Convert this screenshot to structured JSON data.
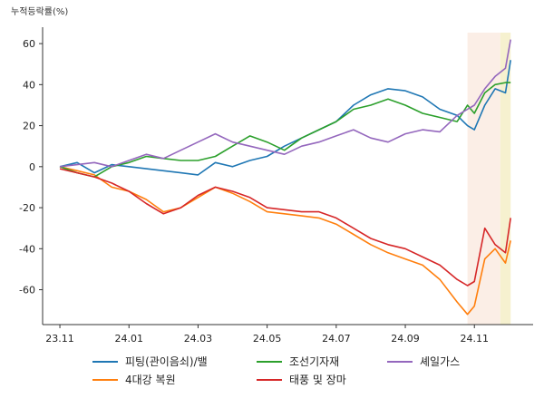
{
  "chart_data": {
    "type": "line",
    "ylabel": "누적등락률(%)",
    "ylim": [
      -77,
      68
    ],
    "y_ticks": [
      60,
      40,
      20,
      0,
      -20,
      -40,
      -60
    ],
    "x_ticks": [
      {
        "label": "23.11",
        "t": 0
      },
      {
        "label": "24.01",
        "t": 2
      },
      {
        "label": "24.03",
        "t": 4
      },
      {
        "label": "24.05",
        "t": 6
      },
      {
        "label": "24.07",
        "t": 8
      },
      {
        "label": "24.09",
        "t": 10
      },
      {
        "label": "24.11",
        "t": 12
      }
    ],
    "xlim": [
      -0.5,
      13.7
    ],
    "highlight_bands": [
      {
        "from": 11.8,
        "to": 12.75,
        "color": "#fbeee6"
      },
      {
        "from": 12.75,
        "to": 13.05,
        "color": "#f6f1cf"
      }
    ],
    "legend": {
      "position": "bottom",
      "columns": 3
    },
    "series": [
      {
        "name": "피팅(관이음쇠)/밸",
        "color": "#1f77b4",
        "x": [
          0,
          0.5,
          1,
          1.5,
          2,
          2.5,
          3,
          3.5,
          4,
          4.5,
          5,
          5.5,
          6,
          6.5,
          7,
          7.5,
          8,
          8.5,
          9,
          9.5,
          10,
          10.5,
          11,
          11.5,
          11.8,
          12,
          12.3,
          12.6,
          12.9,
          13.05
        ],
        "values": [
          0,
          2,
          -3,
          1,
          0,
          -1,
          -2,
          -3,
          -4,
          2,
          0,
          3,
          5,
          10,
          14,
          18,
          22,
          30,
          35,
          38,
          37,
          34,
          28,
          25,
          20,
          18,
          30,
          38,
          36,
          52
        ]
      },
      {
        "name": "4대강 복원",
        "color": "#ff7f0e",
        "x": [
          0,
          0.5,
          1,
          1.5,
          2,
          2.5,
          3,
          3.5,
          4,
          4.5,
          5,
          5.5,
          6,
          6.5,
          7,
          7.5,
          8,
          8.5,
          9,
          9.5,
          10,
          10.5,
          11,
          11.5,
          11.8,
          12,
          12.3,
          12.6,
          12.9,
          13.05
        ],
        "values": [
          0,
          -2,
          -4,
          -10,
          -12,
          -16,
          -22,
          -20,
          -15,
          -10,
          -13,
          -17,
          -22,
          -23,
          -24,
          -25,
          -28,
          -33,
          -38,
          -42,
          -45,
          -48,
          -55,
          -66,
          -72,
          -68,
          -45,
          -40,
          -47,
          -36
        ]
      },
      {
        "name": "조선기자재",
        "color": "#2ca02c",
        "x": [
          0,
          0.5,
          1,
          1.5,
          2,
          2.5,
          3,
          3.5,
          4,
          4.5,
          5,
          5.5,
          6,
          6.5,
          7,
          7.5,
          8,
          8.5,
          9,
          9.5,
          10,
          10.5,
          11,
          11.5,
          11.8,
          12,
          12.3,
          12.6,
          12.9,
          13.05
        ],
        "values": [
          0,
          -3,
          -5,
          0,
          2,
          5,
          4,
          3,
          3,
          5,
          10,
          15,
          12,
          8,
          14,
          18,
          22,
          28,
          30,
          33,
          30,
          26,
          24,
          22,
          30,
          26,
          36,
          40,
          41,
          41
        ]
      },
      {
        "name": "태풍 및 장마",
        "color": "#d62728",
        "x": [
          0,
          0.5,
          1,
          1.5,
          2,
          2.5,
          3,
          3.5,
          4,
          4.5,
          5,
          5.5,
          6,
          6.5,
          7,
          7.5,
          8,
          8.5,
          9,
          9.5,
          10,
          10.5,
          11,
          11.5,
          11.8,
          12,
          12.3,
          12.6,
          12.9,
          13.05
        ],
        "values": [
          -1,
          -3,
          -5,
          -8,
          -12,
          -18,
          -23,
          -20,
          -14,
          -10,
          -12,
          -15,
          -20,
          -21,
          -22,
          -22,
          -25,
          -30,
          -35,
          -38,
          -40,
          -44,
          -48,
          -55,
          -58,
          -56,
          -30,
          -38,
          -42,
          -25
        ]
      },
      {
        "name": "셰일가스",
        "color": "#9467bd",
        "x": [
          0,
          0.5,
          1,
          1.5,
          2,
          2.5,
          3,
          3.5,
          4,
          4.5,
          5,
          5.5,
          6,
          6.5,
          7,
          7.5,
          8,
          8.5,
          9,
          9.5,
          10,
          10.5,
          11,
          11.5,
          11.8,
          12,
          12.3,
          12.6,
          12.9,
          13.05
        ],
        "values": [
          0,
          1,
          2,
          0,
          3,
          6,
          4,
          8,
          12,
          16,
          12,
          10,
          8,
          6,
          10,
          12,
          15,
          18,
          14,
          12,
          16,
          18,
          17,
          25,
          28,
          30,
          38,
          44,
          48,
          62
        ]
      }
    ]
  }
}
